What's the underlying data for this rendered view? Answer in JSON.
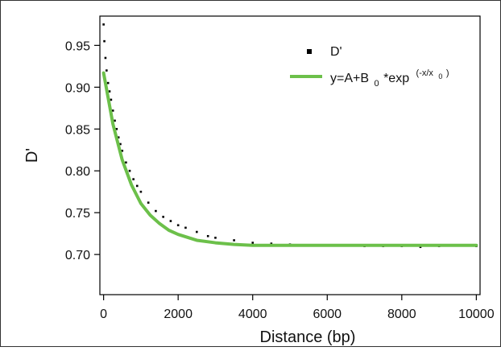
{
  "chart_data": {
    "type": "scatter",
    "title": "",
    "xlabel": "Distance (bp)",
    "ylabel": "D'",
    "xlim": [
      -100,
      10100
    ],
    "ylim": [
      0.652,
      0.985
    ],
    "xticks": [
      0,
      2000,
      4000,
      6000,
      8000,
      10000
    ],
    "xtick_labels": [
      "0",
      "2000",
      "4000",
      "6000",
      "8000",
      "10000"
    ],
    "yticks": [
      0.7,
      0.75,
      0.8,
      0.85,
      0.9,
      0.95
    ],
    "ytick_labels": [
      "0.70",
      "0.75",
      "0.80",
      "0.85",
      "0.90",
      "0.95"
    ],
    "grid": false,
    "legend_position": "top-right",
    "series": [
      {
        "name": "D'",
        "kind": "scatter",
        "color": "#000000",
        "points": [
          [
            0,
            0.975
          ],
          [
            20,
            0.955
          ],
          [
            50,
            0.935
          ],
          [
            80,
            0.92
          ],
          [
            120,
            0.905
          ],
          [
            160,
            0.895
          ],
          [
            200,
            0.885
          ],
          [
            250,
            0.872
          ],
          [
            300,
            0.86
          ],
          [
            350,
            0.85
          ],
          [
            400,
            0.84
          ],
          [
            450,
            0.832
          ],
          [
            500,
            0.824
          ],
          [
            600,
            0.81
          ],
          [
            700,
            0.8
          ],
          [
            800,
            0.79
          ],
          [
            900,
            0.782
          ],
          [
            1000,
            0.775
          ],
          [
            1200,
            0.762
          ],
          [
            1400,
            0.752
          ],
          [
            1600,
            0.745
          ],
          [
            1800,
            0.74
          ],
          [
            2000,
            0.735
          ],
          [
            2200,
            0.732
          ],
          [
            2500,
            0.727
          ],
          [
            2800,
            0.722
          ],
          [
            3000,
            0.72
          ],
          [
            3500,
            0.717
          ],
          [
            4000,
            0.714
          ],
          [
            4500,
            0.713
          ],
          [
            5000,
            0.712
          ],
          [
            5500,
            0.711
          ],
          [
            6000,
            0.711
          ],
          [
            6500,
            0.711
          ],
          [
            7000,
            0.71
          ],
          [
            7500,
            0.71
          ],
          [
            8000,
            0.71
          ],
          [
            8500,
            0.709
          ],
          [
            9000,
            0.71
          ],
          [
            9500,
            0.711
          ],
          [
            10000,
            0.71
          ]
        ]
      },
      {
        "name": "y=A+B 0*exp (-x/x 0)",
        "kind": "line",
        "color": "#6cc04a",
        "function": "exponential_decay",
        "params": {
          "A": 0.7105,
          "B0": 0.206,
          "x0": 720
        },
        "x": [
          0,
          250,
          500,
          750,
          1000,
          1250,
          1500,
          1750,
          2000,
          2500,
          3000,
          3500,
          4000,
          5000,
          6000,
          7000,
          8000,
          9000,
          10000
        ],
        "y": [
          0.917,
          0.856,
          0.813,
          0.783,
          0.761,
          0.747,
          0.737,
          0.729,
          0.724,
          0.717,
          0.714,
          0.712,
          0.711,
          0.711,
          0.711,
          0.711,
          0.711,
          0.711,
          0.711
        ]
      }
    ],
    "legend": {
      "items": [
        {
          "marker": "square",
          "color": "#000000",
          "label": "D'"
        },
        {
          "marker": "line",
          "color": "#6cc04a",
          "label_parts": [
            "y=A+B",
            "0",
            "*exp",
            "(-x/x",
            "0",
            ")"
          ]
        }
      ]
    }
  }
}
